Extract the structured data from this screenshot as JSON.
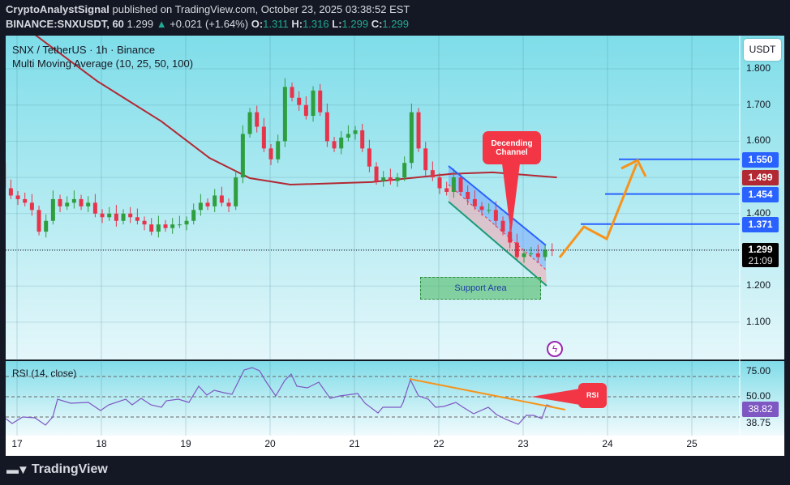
{
  "header": {
    "author": "CryptoAnalystSignal",
    "published": "published on TradingView.com, October 23, 2025 03:38:52 EST",
    "symbol": "BINANCE:SNXUSDT, 60",
    "last": "1.299",
    "change": "+0.021 (+1.64%)",
    "o_label": "O:",
    "o": "1.311",
    "h_label": "H:",
    "h": "1.316",
    "l_label": "L:",
    "l": "1.299",
    "c_label": "C:",
    "c": "1.299"
  },
  "legend": {
    "title": "SNX / TetherUS · 1h · Binance",
    "indicator": "Multi Moving Average (10, 25, 50, 100)",
    "rsi": "RSI (14, close)"
  },
  "currency": "USDT",
  "price_axis": [
    "1.800",
    "1.700",
    "1.600",
    "1.400",
    "1.200",
    "1.100"
  ],
  "tags": {
    "t1550": "1.550",
    "t1499": "1.499",
    "t1454": "1.454",
    "t1371": "1.371",
    "last": "1.299",
    "countdown": "21:09"
  },
  "rsi_axis": {
    "a": "75.00",
    "b": "50.00",
    "c": "38.75",
    "current": "38.82"
  },
  "dates": [
    "17",
    "18",
    "19",
    "20",
    "21",
    "22",
    "23",
    "24",
    "25"
  ],
  "annotations": {
    "channel": "Decending Channel",
    "support": "Support Area",
    "rsi": "RSI"
  },
  "brand": "TradingView",
  "colors": {
    "up": "#2e9e3e",
    "down": "#e8344b",
    "ma": "#b22833",
    "level": "#2962ff",
    "orange": "#f7931a",
    "rsi": "#7e57c2"
  },
  "chart_data": {
    "type": "candlestick",
    "title": "SNX / TetherUS · 1h · Binance",
    "ylim": [
      1.05,
      1.9
    ],
    "start_day": 16.76,
    "interval_hours": 2,
    "closes": [
      1.54,
      1.47,
      1.45,
      1.44,
      1.43,
      1.41,
      1.35,
      1.38,
      1.44,
      1.42,
      1.43,
      1.44,
      1.42,
      1.43,
      1.4,
      1.39,
      1.4,
      1.38,
      1.4,
      1.39,
      1.38,
      1.37,
      1.35,
      1.37,
      1.36,
      1.37,
      1.37,
      1.38,
      1.41,
      1.43,
      1.42,
      1.45,
      1.43,
      1.42,
      1.5,
      1.62,
      1.68,
      1.64,
      1.58,
      1.55,
      1.6,
      1.75,
      1.72,
      1.7,
      1.67,
      1.74,
      1.68,
      1.6,
      1.58,
      1.61,
      1.62,
      1.63,
      1.58,
      1.53,
      1.49,
      1.5,
      1.49,
      1.5,
      1.54,
      1.68,
      1.58,
      1.52,
      1.5,
      1.47,
      1.46,
      1.5,
      1.46,
      1.44,
      1.42,
      1.41,
      1.41,
      1.38,
      1.35,
      1.32,
      1.28,
      1.29,
      1.29,
      1.28,
      1.3,
      1.299
    ],
    "ma100": [
      [
        17.18,
        1.9
      ],
      [
        17.95,
        1.766
      ],
      [
        18.71,
        1.655
      ],
      [
        19.28,
        1.554
      ],
      [
        19.76,
        1.498
      ],
      [
        20.24,
        1.48
      ],
      [
        21.2,
        1.487
      ],
      [
        22.16,
        1.51
      ],
      [
        22.64,
        1.514
      ],
      [
        23.4,
        1.5
      ]
    ],
    "levels": [
      1.55,
      1.454,
      1.371
    ],
    "rsi": [
      [
        16.865,
        28.4
      ],
      [
        16.942,
        23.6
      ],
      [
        17.067,
        30
      ],
      [
        17.212,
        29.2
      ],
      [
        17.337,
        22
      ],
      [
        17.423,
        30
      ],
      [
        17.481,
        47.6
      ],
      [
        17.635,
        43.6
      ],
      [
        17.846,
        44.4
      ],
      [
        17.99,
        36.4
      ],
      [
        18.087,
        42
      ],
      [
        18.288,
        47.6
      ],
      [
        18.365,
        42
      ],
      [
        18.471,
        48.4
      ],
      [
        18.587,
        42
      ],
      [
        18.712,
        39.6
      ],
      [
        18.769,
        46
      ],
      [
        18.913,
        47.6
      ],
      [
        19.038,
        44.4
      ],
      [
        19.154,
        60.4
      ],
      [
        19.25,
        51.6
      ],
      [
        19.337,
        56.4
      ],
      [
        19.452,
        54
      ],
      [
        19.548,
        52.4
      ],
      [
        19.606,
        62
      ],
      [
        19.692,
        76.4
      ],
      [
        19.788,
        78.8
      ],
      [
        19.875,
        75.6
      ],
      [
        19.962,
        63.6
      ],
      [
        20.067,
        50.8
      ],
      [
        20.173,
        66
      ],
      [
        20.25,
        72.4
      ],
      [
        20.317,
        60.4
      ],
      [
        20.442,
        58.8
      ],
      [
        20.577,
        64.4
      ],
      [
        20.712,
        48.4
      ],
      [
        20.827,
        50.8
      ],
      [
        21.038,
        53.2
      ],
      [
        21.125,
        43.6
      ],
      [
        21.279,
        34
      ],
      [
        21.337,
        39.6
      ],
      [
        21.548,
        39.6
      ],
      [
        21.577,
        44.4
      ],
      [
        21.663,
        66.8
      ],
      [
        21.76,
        50.8
      ],
      [
        21.875,
        47.6
      ],
      [
        21.962,
        39.6
      ],
      [
        22.058,
        40.4
      ],
      [
        22.202,
        44.4
      ],
      [
        22.288,
        39.6
      ],
      [
        22.413,
        33.2
      ],
      [
        22.587,
        39.6
      ],
      [
        22.683,
        32.4
      ],
      [
        22.798,
        27.6
      ],
      [
        22.942,
        22.8
      ],
      [
        23.038,
        31.6
      ],
      [
        23.125,
        31.6
      ],
      [
        23.221,
        28.4
      ],
      [
        23.279,
        42
      ],
      [
        23.365,
        39.6
      ]
    ]
  }
}
